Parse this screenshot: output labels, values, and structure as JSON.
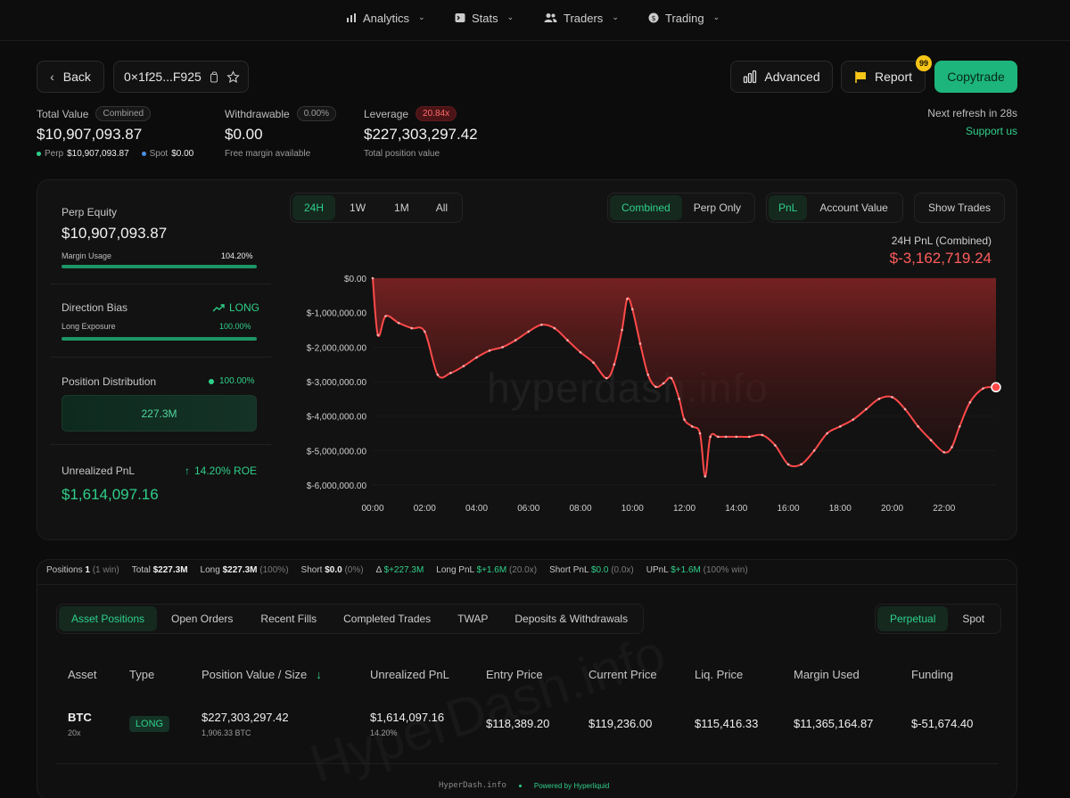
{
  "nav": {
    "items": [
      {
        "label": "Analytics",
        "icon": "bar-chart-icon"
      },
      {
        "label": "Stats",
        "icon": "terminal-icon"
      },
      {
        "label": "Traders",
        "icon": "users-icon"
      },
      {
        "label": "Trading",
        "icon": "dollar-circle-icon"
      }
    ]
  },
  "header": {
    "back_label": "Back",
    "address": "0×1f25...F925",
    "advanced_label": "Advanced",
    "report_label": "Report",
    "report_badge": "99",
    "copytrade_label": "Copytrade",
    "refresh_text": "Next refresh in 28s",
    "support_text": "Support us"
  },
  "stats": {
    "total_value": {
      "label": "Total Value",
      "pill": "Combined",
      "value": "$10,907,093.87",
      "perp_label": "Perp",
      "perp_value": "$10,907,093.87",
      "spot_label": "Spot",
      "spot_value": "$0.00"
    },
    "withdrawable": {
      "label": "Withdrawable",
      "pill": "0.00%",
      "value": "$0.00",
      "sub": "Free margin available"
    },
    "leverage": {
      "label": "Leverage",
      "pill": "20.84x",
      "value": "$227,303,297.42",
      "sub": "Total position value"
    }
  },
  "side": {
    "perp_equity_label": "Perp Equity",
    "perp_equity_value": "$10,907,093.87",
    "margin_usage_label": "Margin Usage",
    "margin_usage_value": "104.20%",
    "margin_usage_fraction": 1.0,
    "direction_label": "Direction Bias",
    "direction_value": "LONG",
    "long_exposure_label": "Long Exposure",
    "long_exposure_value": "100.00%",
    "long_exposure_fraction": 1.0,
    "distribution_label": "Position Distribution",
    "distribution_value": "100.00%",
    "distribution_box": "227.3M",
    "upnl_label": "Unrealized PnL",
    "upnl_roe": "14.20% ROE",
    "upnl_value": "$1,614,097.16"
  },
  "chart_controls": {
    "ranges": [
      "24H",
      "1W",
      "1M",
      "All"
    ],
    "active_range": "24H",
    "modes": [
      "Combined",
      "Perp Only"
    ],
    "metrics": [
      "PnL",
      "Account Value"
    ],
    "show_trades": "Show Trades",
    "title": "24H PnL (Combined)",
    "big_value": "$-3,162,719.24",
    "watermark": "hyperdash.info"
  },
  "chart_data": {
    "type": "area",
    "title": "24H PnL (Combined)",
    "ylim": [
      -6000000,
      0
    ],
    "yticks": [
      "$0.00",
      "$-1,000,000.00",
      "$-2,000,000.00",
      "$-3,000,000.00",
      "$-4,000,000.00",
      "$-5,000,000.00",
      "$-6,000,000.00"
    ],
    "xticks": [
      "00:00",
      "02:00",
      "04:00",
      "06:00",
      "08:00",
      "10:00",
      "12:00",
      "14:00",
      "16:00",
      "18:00",
      "20:00",
      "22:00"
    ],
    "x_hours": [
      0,
      0.2,
      0.5,
      1.0,
      1.5,
      2.0,
      2.5,
      3.0,
      3.5,
      4.0,
      4.5,
      5.0,
      5.5,
      6.0,
      6.5,
      7.0,
      7.5,
      8.0,
      8.5,
      9.0,
      9.3,
      9.6,
      9.8,
      10.0,
      10.3,
      10.6,
      10.9,
      11.2,
      11.5,
      11.8,
      12.0,
      12.3,
      12.6,
      12.8,
      13.0,
      13.3,
      13.6,
      14.0,
      14.5,
      15.0,
      15.5,
      16.0,
      16.5,
      17.0,
      17.5,
      18.0,
      18.5,
      19.0,
      19.5,
      20.0,
      20.5,
      21.0,
      21.5,
      22.0,
      22.3,
      22.6,
      23.0,
      23.5,
      24.0
    ],
    "values": [
      0,
      -1650000,
      -1100000,
      -1300000,
      -1450000,
      -1550000,
      -2800000,
      -2750000,
      -2550000,
      -2300000,
      -2100000,
      -2000000,
      -1800000,
      -1550000,
      -1350000,
      -1450000,
      -1800000,
      -2150000,
      -2450000,
      -2900000,
      -2500000,
      -1500000,
      -600000,
      -900000,
      -1900000,
      -2800000,
      -3150000,
      -3050000,
      -2900000,
      -3500000,
      -4100000,
      -4300000,
      -4500000,
      -5750000,
      -4600000,
      -4600000,
      -4600000,
      -4600000,
      -4600000,
      -4550000,
      -4850000,
      -5400000,
      -5400000,
      -5000000,
      -4500000,
      -4300000,
      -4100000,
      -3800000,
      -3500000,
      -3450000,
      -3800000,
      -4300000,
      -4700000,
      -5050000,
      -4900000,
      -4300000,
      -3600000,
      -3200000,
      -3162719
    ]
  },
  "positions_strip": {
    "positions_label": "Positions",
    "positions_value": "1",
    "positions_extra": "(1 win)",
    "total_label": "Total",
    "total_value": "$227.3M",
    "long_label": "Long",
    "long_value": "$227.3M",
    "long_extra": "(100%)",
    "short_label": "Short",
    "short_value": "$0.0",
    "short_extra": "(0%)",
    "delta_label": "Δ",
    "delta_value": "$+227.3M",
    "longpnl_label": "Long PnL",
    "longpnl_value": "$+1.6M",
    "longpnl_extra": "(20.0x)",
    "shortpnl_label": "Short PnL",
    "shortpnl_value": "$0.0",
    "shortpnl_extra": "(0.0x)",
    "upnl_label": "UPnL",
    "upnl_value": "$+1.6M",
    "upnl_extra": "(100% win)"
  },
  "tabs": {
    "items": [
      "Asset Positions",
      "Open Orders",
      "Recent Fills",
      "Completed Trades",
      "TWAP",
      "Deposits & Withdrawals"
    ],
    "market": [
      "Perpetual",
      "Spot"
    ]
  },
  "table": {
    "headers": [
      "Asset",
      "Type",
      "Position Value / Size",
      "Unrealized PnL",
      "Entry Price",
      "Current Price",
      "Liq. Price",
      "Margin Used",
      "Funding"
    ],
    "row": {
      "asset": "BTC",
      "leverage": "20x",
      "type": "LONG",
      "position_value": "$227,303,297.42",
      "size": "1,906.33 BTC",
      "upnl": "$1,614,097.16",
      "upnl_pct": "14.20%",
      "entry": "$118,389.20",
      "current": "$119,236.00",
      "liq": "$115,416.33",
      "margin": "$11,365,164.87",
      "funding": "$-51,674.40"
    }
  },
  "footer": {
    "brand": "HyperDash.info",
    "powered": "Powered by Hyperliquid"
  },
  "colors": {
    "accent": "#2fd08a",
    "copytrade": "#1db57c",
    "negative": "#ff5c5c",
    "badge": "#f5c518"
  }
}
